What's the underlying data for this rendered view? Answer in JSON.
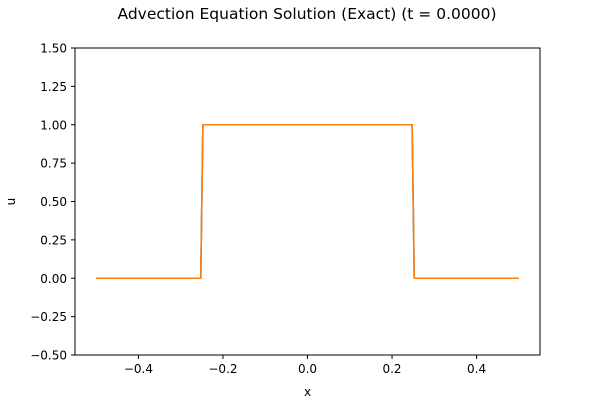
{
  "chart_data": {
    "type": "line",
    "title": "Advection Equation Solution (Exact) (t = 0.0000)",
    "xlabel": "x",
    "ylabel": "u",
    "xlim": [
      -0.55,
      0.55
    ],
    "ylim": [
      -0.5,
      1.5
    ],
    "xticks": [
      -0.4,
      -0.2,
      0.0,
      0.2,
      0.4
    ],
    "xtick_labels": [
      "−0.4",
      "−0.2",
      "0.0",
      "0.2",
      "0.4"
    ],
    "yticks": [
      -0.5,
      -0.25,
      0.0,
      0.25,
      0.5,
      0.75,
      1.0,
      1.25,
      1.5
    ],
    "ytick_labels": [
      "−0.50",
      "−0.25",
      "0.00",
      "0.25",
      "0.50",
      "0.75",
      "1.00",
      "1.25",
      "1.50"
    ],
    "grid": false,
    "series": [
      {
        "color": "#1f77b4",
        "x": [
          -0.5,
          -0.2525,
          -0.2475,
          0.2475,
          0.2525,
          0.5
        ],
        "y": [
          0,
          0,
          1,
          1,
          0,
          0
        ]
      },
      {
        "color": "#ff7f0e",
        "x": [
          -0.5,
          -0.2525,
          -0.2475,
          0.2475,
          0.2525,
          0.5
        ],
        "y": [
          0,
          0,
          1,
          1,
          0,
          0
        ]
      }
    ]
  }
}
